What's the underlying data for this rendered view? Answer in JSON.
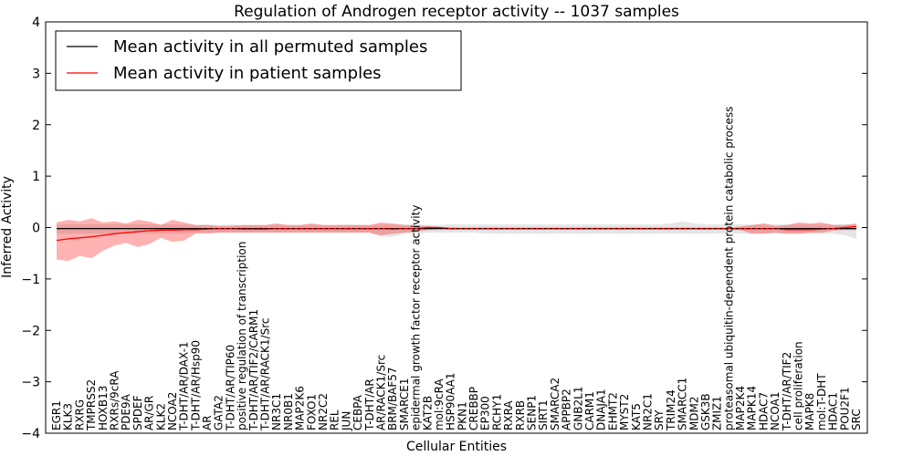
{
  "chart_data": {
    "type": "line",
    "title": "Regulation of Androgen receptor activity -- 1037 samples",
    "xlabel": "Cellular Entities",
    "ylabel": "Inferred Activity",
    "ylim": [
      -4,
      4
    ],
    "yticks": [
      -4,
      -3,
      -2,
      -1,
      0,
      1,
      2,
      3,
      4
    ],
    "ytick_labels": [
      "−4",
      "−3",
      "−2",
      "−1",
      "0",
      "1",
      "2",
      "3",
      "4"
    ],
    "grid": false,
    "legend_position": "top-left",
    "categories": [
      "EGR1",
      "KLK3",
      "RXRG",
      "TMPRSS2",
      "HOXB13",
      "RXRs/9cRA",
      "PDE9A",
      "SPDEF",
      "AR/GR",
      "KLK2",
      "NCOA2",
      "T-DHT/AR/DAX-1",
      "T-DHT/AR/Hsp90",
      "AR",
      "GATA2",
      "T-DHT/AR/TIP60",
      "positive regulation of transcription",
      "T-DHT/AR/TIF2/CARM1",
      "T-DHT/AR/RACK1/Src",
      "NR3C1",
      "NR0B1",
      "MAP2K6",
      "FOXO1",
      "NR2C2",
      "REL",
      "JUN",
      "CEBPA",
      "T-DHT/AR",
      "AR/RACK1/Src",
      "BRM/BAF57",
      "SMARCE1",
      "epidermal growth factor receptor activity",
      "KAT2B",
      "mol:9cRA",
      "HSP90AA1",
      "PKN1",
      "CREBBP",
      "EP300",
      "RCHY1",
      "RXRA",
      "RXRB",
      "SENP1",
      "SIRT1",
      "SMARCA2",
      "APPBP2",
      "GNB2L1",
      "CARM1",
      "DNAJA1",
      "EHMT2",
      "MYST2",
      "KAT5",
      "NR2C1",
      "SRY",
      "TRIM24",
      "SMARCC1",
      "MDM2",
      "GSK3B",
      "ZMIZ1",
      "proteasomal ubiquitin-dependent protein catabolic process",
      "MAP2K4",
      "MAPK14",
      "HDAC7",
      "NCOA1",
      "T-DHT/AR/TIF2",
      "cell proliferation",
      "MAPK8",
      "mol:T-DHT",
      "HDAC1",
      "POU2F1",
      "SRC"
    ],
    "series": [
      {
        "name": "Mean activity in all permuted samples",
        "color": "#000000",
        "values": [
          -0.02,
          -0.02,
          -0.02,
          -0.02,
          -0.02,
          -0.02,
          -0.02,
          -0.02,
          -0.02,
          -0.02,
          -0.02,
          -0.02,
          -0.02,
          -0.02,
          -0.02,
          -0.02,
          -0.02,
          -0.02,
          -0.02,
          -0.02,
          -0.02,
          -0.02,
          -0.02,
          -0.02,
          -0.02,
          -0.02,
          -0.02,
          -0.02,
          -0.02,
          -0.02,
          -0.02,
          -0.02,
          -0.02,
          -0.02,
          -0.02,
          -0.02,
          -0.02,
          -0.02,
          -0.02,
          -0.02,
          -0.02,
          -0.02,
          -0.02,
          -0.02,
          -0.02,
          -0.02,
          -0.02,
          -0.02,
          -0.02,
          -0.02,
          -0.02,
          -0.02,
          -0.02,
          -0.02,
          -0.02,
          -0.02,
          -0.02,
          -0.02,
          -0.02,
          -0.02,
          -0.02,
          -0.02,
          -0.02,
          -0.02,
          -0.02,
          -0.02,
          -0.02,
          -0.02,
          -0.02,
          -0.02
        ],
        "band_upper": [
          0.06,
          0.07,
          0.06,
          0.07,
          0.06,
          0.07,
          0.06,
          0.07,
          0.06,
          0.07,
          0.06,
          0.06,
          0.05,
          0.06,
          0.05,
          0.06,
          0.05,
          0.05,
          0.05,
          0.06,
          0.05,
          0.05,
          0.06,
          0.05,
          0.05,
          0.06,
          0.05,
          0.05,
          0.06,
          0.06,
          0.06,
          0.06,
          0.05,
          0.05,
          0.06,
          0.06,
          0.06,
          0.06,
          0.06,
          0.06,
          0.06,
          0.06,
          0.06,
          0.06,
          0.06,
          0.06,
          0.06,
          0.06,
          0.06,
          0.06,
          0.06,
          0.06,
          0.06,
          0.08,
          0.12,
          0.08,
          0.06,
          0.06,
          0.06,
          0.06,
          0.06,
          0.06,
          0.06,
          0.06,
          0.06,
          0.06,
          0.06,
          0.06,
          0.06,
          0.06
        ],
        "band_lower": [
          -0.12,
          -0.12,
          -0.12,
          -0.12,
          -0.12,
          -0.12,
          -0.12,
          -0.12,
          -0.12,
          -0.12,
          -0.12,
          -0.12,
          -0.1,
          -0.1,
          -0.1,
          -0.1,
          -0.1,
          -0.1,
          -0.1,
          -0.1,
          -0.1,
          -0.1,
          -0.1,
          -0.1,
          -0.1,
          -0.1,
          -0.1,
          -0.1,
          -0.18,
          -0.18,
          -0.12,
          -0.12,
          -0.1,
          -0.1,
          -0.1,
          -0.1,
          -0.1,
          -0.12,
          -0.12,
          -0.12,
          -0.12,
          -0.12,
          -0.12,
          -0.12,
          -0.12,
          -0.12,
          -0.12,
          -0.12,
          -0.12,
          -0.12,
          -0.12,
          -0.12,
          -0.12,
          -0.12,
          -0.12,
          -0.12,
          -0.12,
          -0.12,
          -0.12,
          -0.12,
          -0.12,
          -0.12,
          -0.12,
          -0.12,
          -0.12,
          -0.12,
          -0.12,
          -0.12,
          -0.15,
          -0.22
        ]
      },
      {
        "name": "Mean activity in patient samples",
        "color": "#ff0000",
        "values": [
          -0.25,
          -0.22,
          -0.2,
          -0.18,
          -0.15,
          -0.12,
          -0.1,
          -0.08,
          -0.06,
          -0.05,
          -0.05,
          -0.04,
          -0.04,
          -0.03,
          -0.02,
          -0.02,
          -0.03,
          -0.03,
          -0.03,
          -0.02,
          -0.02,
          -0.02,
          -0.02,
          -0.02,
          -0.02,
          -0.02,
          -0.02,
          -0.02,
          -0.02,
          -0.03,
          -0.02,
          -0.02,
          0.0,
          0.0,
          -0.02,
          -0.02,
          -0.02,
          -0.02,
          -0.02,
          -0.02,
          -0.02,
          -0.02,
          -0.02,
          -0.02,
          -0.02,
          -0.02,
          -0.02,
          -0.02,
          -0.02,
          -0.02,
          -0.02,
          -0.02,
          -0.02,
          -0.02,
          -0.02,
          -0.02,
          -0.02,
          -0.02,
          -0.02,
          -0.02,
          -0.02,
          -0.02,
          -0.02,
          -0.04,
          -0.04,
          -0.04,
          -0.03,
          -0.02,
          0.0,
          0.02
        ],
        "band_upper": [
          0.1,
          0.15,
          0.12,
          0.18,
          0.1,
          0.12,
          0.08,
          0.15,
          0.12,
          0.05,
          0.15,
          0.1,
          0.05,
          0.05,
          0.03,
          0.03,
          0.05,
          0.05,
          0.05,
          0.08,
          0.05,
          0.05,
          0.08,
          0.05,
          0.05,
          0.05,
          0.05,
          0.05,
          0.1,
          0.08,
          0.05,
          0.04,
          0.03,
          0.01,
          0.0,
          0.0,
          0.0,
          0.0,
          0.0,
          0.0,
          0.0,
          0.0,
          0.0,
          0.0,
          0.0,
          0.0,
          0.0,
          0.0,
          0.0,
          0.0,
          0.0,
          0.0,
          0.0,
          0.0,
          0.0,
          0.0,
          0.0,
          0.0,
          0.0,
          0.02,
          0.05,
          0.08,
          0.03,
          0.05,
          0.1,
          0.08,
          0.1,
          0.05,
          0.05,
          0.08
        ],
        "band_lower": [
          -0.62,
          -0.65,
          -0.55,
          -0.6,
          -0.45,
          -0.35,
          -0.3,
          -0.38,
          -0.32,
          -0.2,
          -0.28,
          -0.25,
          -0.12,
          -0.12,
          -0.1,
          -0.1,
          -0.1,
          -0.1,
          -0.1,
          -0.1,
          -0.1,
          -0.1,
          -0.1,
          -0.1,
          -0.1,
          -0.1,
          -0.1,
          -0.1,
          -0.15,
          -0.12,
          -0.1,
          -0.08,
          -0.05,
          -0.03,
          -0.04,
          -0.04,
          -0.04,
          -0.04,
          -0.04,
          -0.04,
          -0.04,
          -0.04,
          -0.04,
          -0.04,
          -0.04,
          -0.04,
          -0.04,
          -0.04,
          -0.04,
          -0.04,
          -0.04,
          -0.04,
          -0.04,
          -0.04,
          -0.04,
          -0.04,
          -0.04,
          -0.04,
          -0.04,
          -0.05,
          -0.12,
          -0.12,
          -0.1,
          -0.12,
          -0.12,
          -0.1,
          -0.1,
          -0.06,
          -0.05,
          -0.05
        ]
      }
    ]
  }
}
